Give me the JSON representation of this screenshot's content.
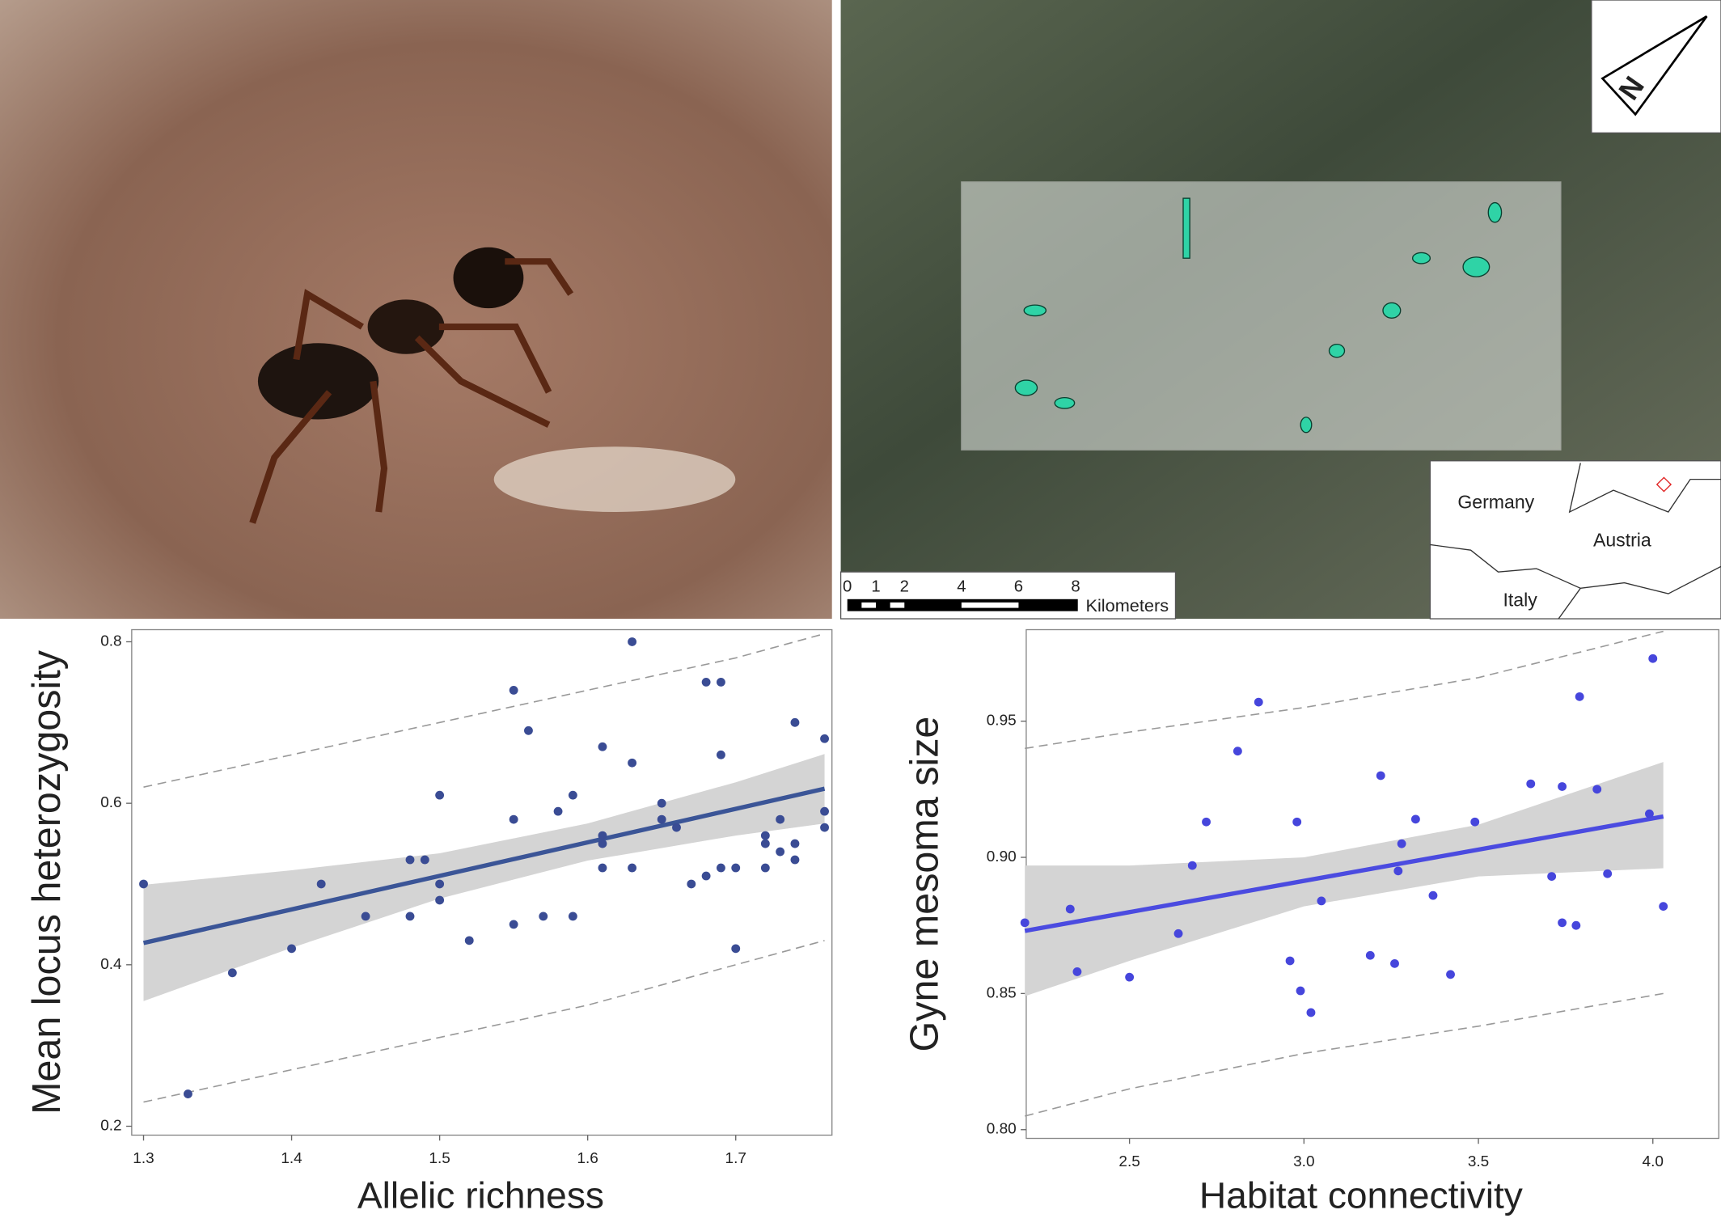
{
  "map": {
    "countries": [
      "Germany",
      "Austria",
      "Italy"
    ],
    "scale_ticks": [
      0,
      1,
      2,
      4,
      6,
      8
    ],
    "scale_unit": "Kilometers",
    "north": "N"
  },
  "chart_data": [
    {
      "type": "scatter",
      "x_label": "Allelic richness",
      "y_label": "Mean locus heterozygosity",
      "x": [
        1.3,
        1.33,
        1.36,
        1.4,
        1.42,
        1.45,
        1.48,
        1.48,
        1.49,
        1.5,
        1.5,
        1.5,
        1.52,
        1.55,
        1.55,
        1.55,
        1.56,
        1.57,
        1.58,
        1.59,
        1.59,
        1.61,
        1.61,
        1.61,
        1.61,
        1.63,
        1.63,
        1.63,
        1.65,
        1.65,
        1.66,
        1.67,
        1.68,
        1.68,
        1.69,
        1.69,
        1.69,
        1.7,
        1.7,
        1.72,
        1.72,
        1.72,
        1.73,
        1.73,
        1.74,
        1.74,
        1.74,
        1.76,
        1.76,
        1.76
      ],
      "y": [
        0.5,
        0.24,
        0.39,
        0.42,
        0.5,
        0.46,
        0.53,
        0.46,
        0.53,
        0.61,
        0.5,
        0.48,
        0.43,
        0.74,
        0.58,
        0.45,
        0.69,
        0.46,
        0.59,
        0.61,
        0.46,
        0.67,
        0.56,
        0.55,
        0.52,
        0.8,
        0.65,
        0.52,
        0.6,
        0.58,
        0.57,
        0.5,
        0.75,
        0.51,
        0.75,
        0.66,
        0.52,
        0.52,
        0.42,
        0.56,
        0.55,
        0.52,
        0.58,
        0.54,
        0.7,
        0.55,
        0.53,
        0.68,
        0.59,
        0.57
      ],
      "color": "#3a4c94",
      "fit": {
        "x": [
          1.3,
          1.76
        ],
        "y": [
          0.427,
          0.618
        ],
        "color": "#3b5597"
      },
      "confidence_band": {
        "x": [
          1.3,
          1.4,
          1.5,
          1.6,
          1.7,
          1.76
        ],
        "lower": [
          0.355,
          0.421,
          0.482,
          0.529,
          0.56,
          0.575
        ],
        "upper": [
          0.499,
          0.517,
          0.538,
          0.575,
          0.626,
          0.661
        ],
        "color": "#d4d4d4"
      },
      "prediction_interval": {
        "x": [
          1.3,
          1.4,
          1.5,
          1.6,
          1.7,
          1.76
        ],
        "lower": [
          0.23,
          0.27,
          0.31,
          0.35,
          0.4,
          0.43
        ],
        "upper": [
          0.62,
          0.66,
          0.7,
          0.74,
          0.78,
          0.81
        ],
        "color": "#999999"
      },
      "xlim": [
        1.292,
        1.765
      ],
      "ylim": [
        0.189,
        0.815
      ],
      "xticks": [
        1.3,
        1.4,
        1.5,
        1.6,
        1.7
      ],
      "yticks": [
        0.2,
        0.4,
        0.6,
        0.8
      ]
    },
    {
      "type": "scatter",
      "x_label": "Habitat connectivity",
      "y_label": "Gyne mesoma size",
      "x": [
        2.2,
        2.33,
        2.35,
        2.5,
        2.64,
        2.68,
        2.72,
        2.81,
        2.87,
        2.96,
        2.98,
        2.99,
        3.02,
        3.05,
        3.19,
        3.22,
        3.26,
        3.27,
        3.28,
        3.32,
        3.37,
        3.42,
        3.49,
        3.65,
        3.71,
        3.74,
        3.74,
        3.78,
        3.79,
        3.84,
        3.87,
        3.99,
        4.0,
        4.03
      ],
      "y": [
        0.876,
        0.881,
        0.858,
        0.856,
        0.872,
        0.897,
        0.913,
        0.939,
        0.957,
        0.862,
        0.913,
        0.851,
        0.843,
        0.884,
        0.864,
        0.93,
        0.861,
        0.895,
        0.905,
        0.914,
        0.886,
        0.857,
        0.913,
        0.927,
        0.893,
        0.926,
        0.876,
        0.875,
        0.959,
        0.925,
        0.894,
        0.916,
        0.973,
        0.882
      ],
      "color": "#4646dc",
      "fit": {
        "x": [
          2.2,
          4.03
        ],
        "y": [
          0.873,
          0.915
        ],
        "color": "#4b4be0"
      },
      "confidence_band": {
        "x": [
          2.2,
          2.5,
          3.0,
          3.5,
          4.03
        ],
        "lower": [
          0.849,
          0.862,
          0.882,
          0.893,
          0.896
        ],
        "upper": [
          0.897,
          0.897,
          0.9,
          0.912,
          0.935
        ],
        "color": "#d4d4d4"
      },
      "prediction_interval": {
        "x": [
          2.2,
          2.5,
          3.0,
          3.5,
          4.03
        ],
        "lower": [
          0.805,
          0.815,
          0.828,
          0.838,
          0.85
        ],
        "upper": [
          0.94,
          0.946,
          0.955,
          0.966,
          0.983
        ],
        "color": "#999999"
      },
      "xlim": [
        2.204,
        4.189
      ],
      "ylim": [
        0.7968,
        0.9836
      ],
      "xticks": [
        2.5,
        {
          "value": 3.0,
          "label": "3.0"
        },
        3.5,
        {
          "value": 4.0,
          "label": "4.0"
        }
      ],
      "yticks": [
        {
          "value": 0.8,
          "label": "0.80"
        },
        0.85,
        {
          "value": 0.9,
          "label": "0.90"
        },
        0.95
      ]
    }
  ]
}
